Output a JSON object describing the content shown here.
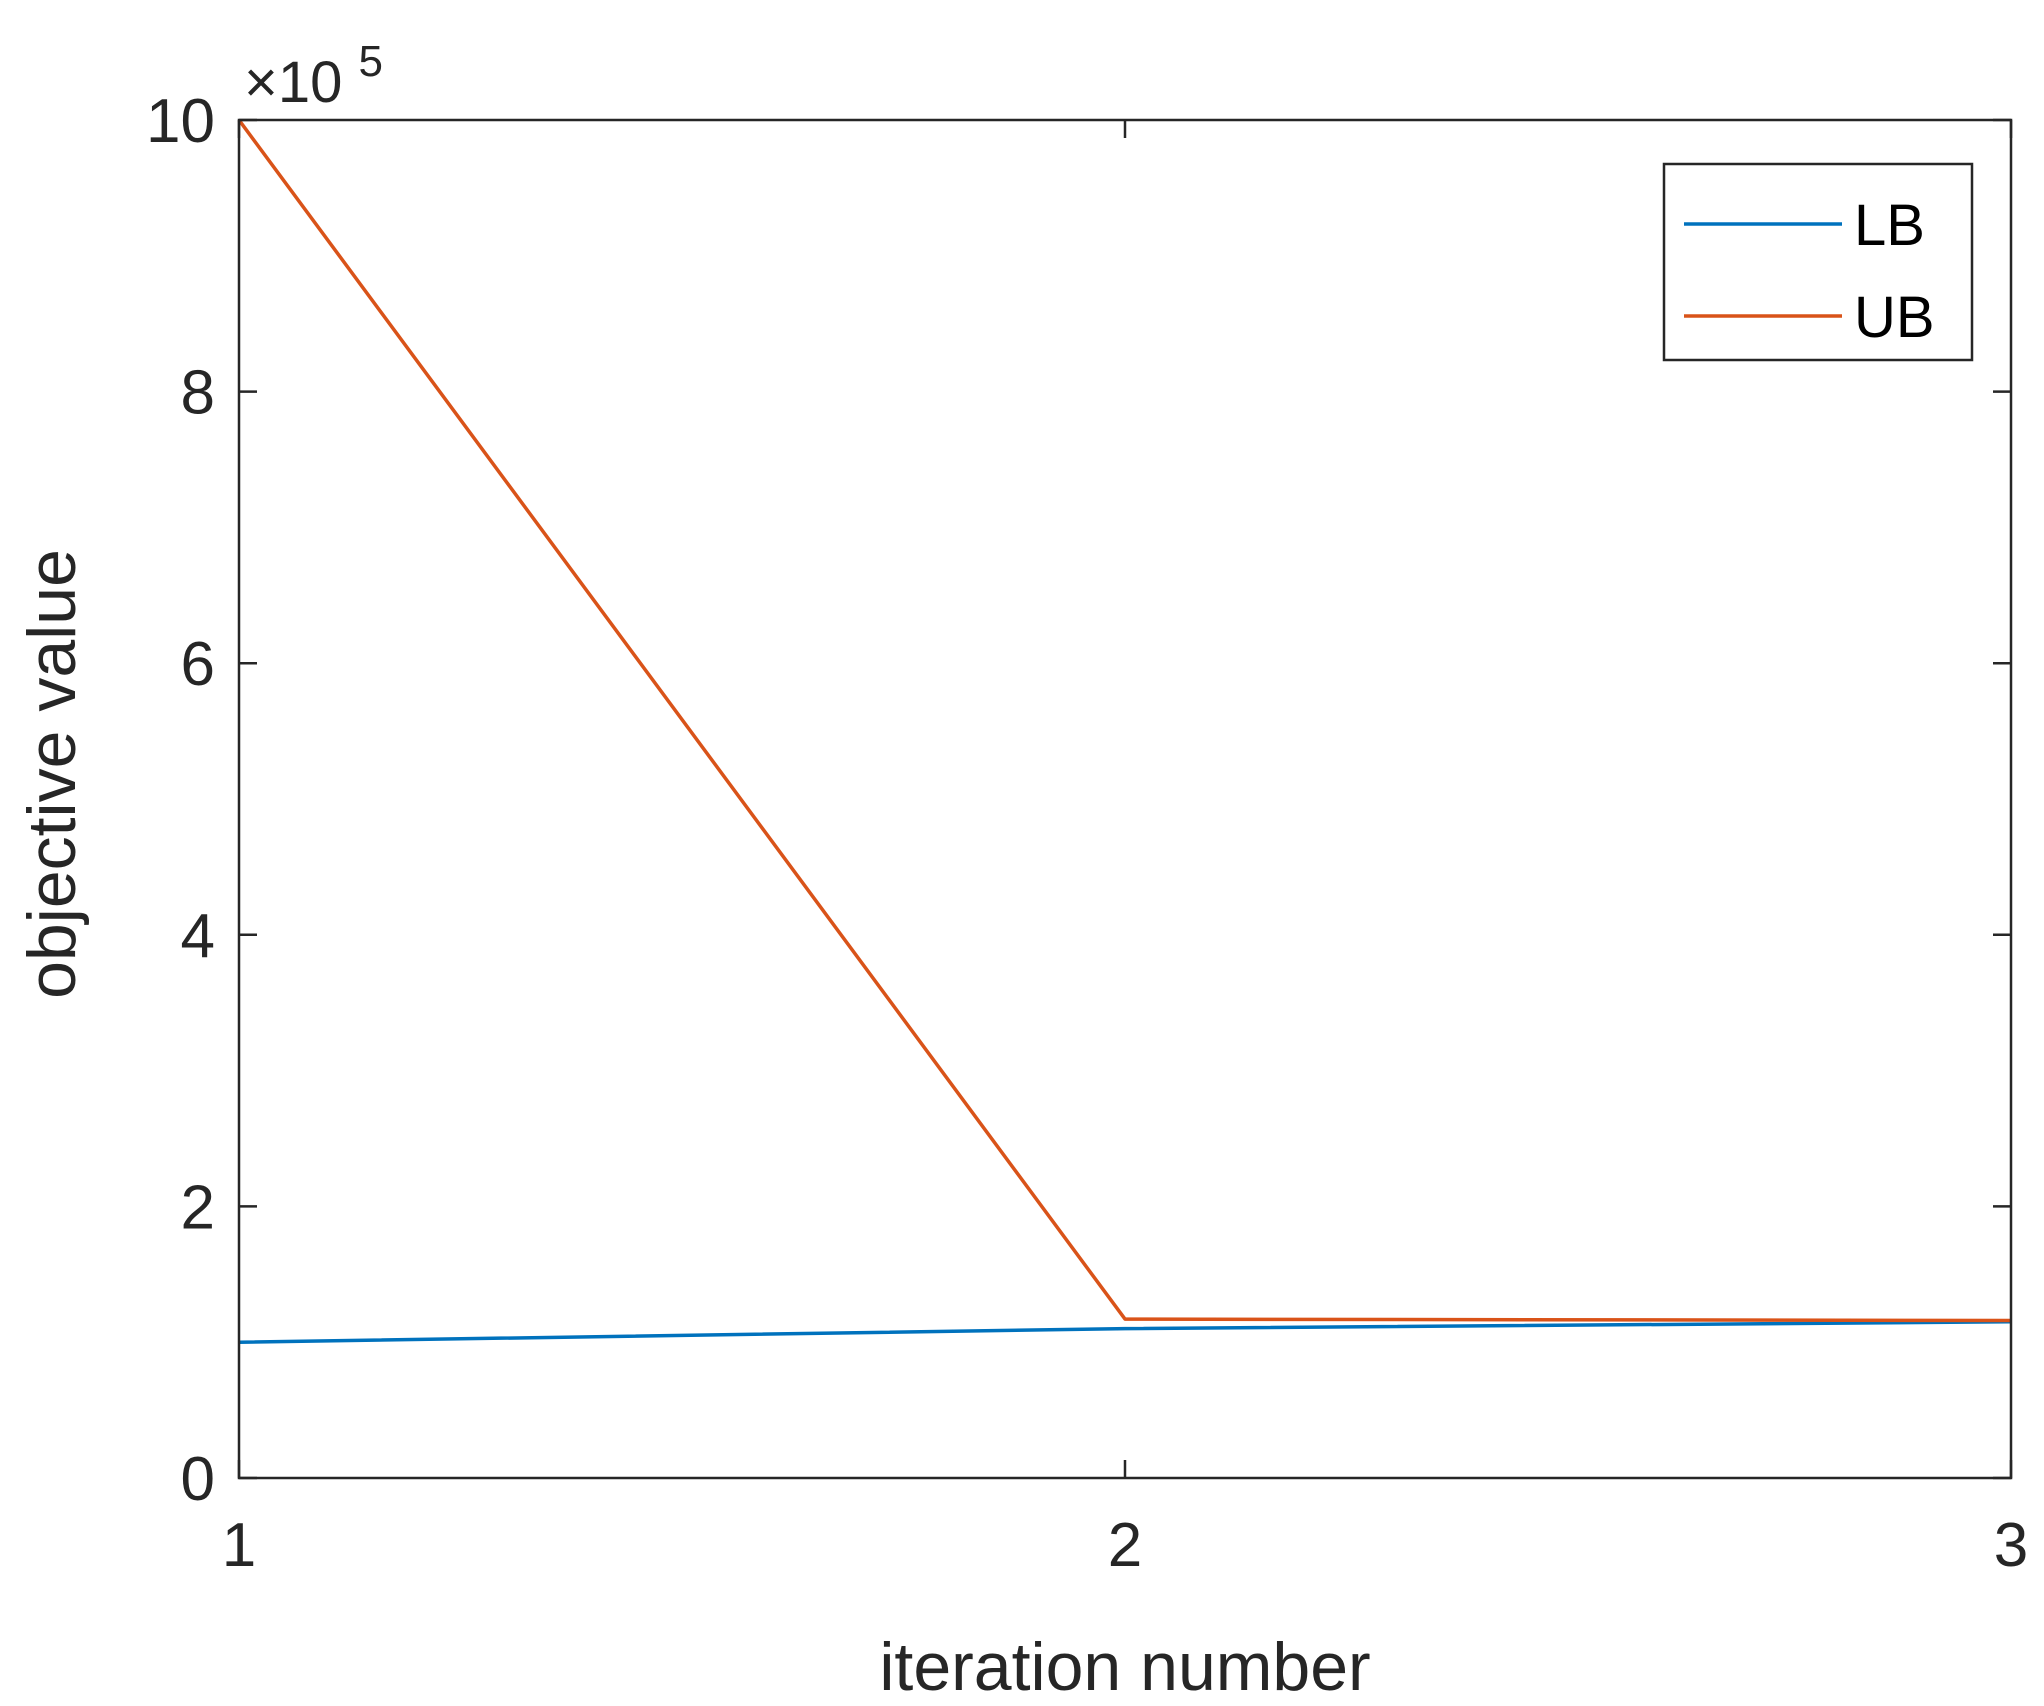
{
  "chart_data": {
    "type": "line",
    "x": [
      1,
      2,
      3
    ],
    "xlabel": "iteration number",
    "ylabel": "objective value",
    "xlim": [
      1,
      3
    ],
    "ylim": [
      0,
      10
    ],
    "y_exponent_label": {
      "base": "×10",
      "exponent": "5"
    },
    "x_ticks": [
      1,
      2,
      3
    ],
    "x_tick_labels": [
      "1",
      "2",
      "3"
    ],
    "y_ticks": [
      0,
      2,
      4,
      6,
      8,
      10
    ],
    "y_tick_labels": [
      "0",
      "2",
      "4",
      "6",
      "8",
      "10"
    ],
    "grid": false,
    "legend_position": "top-right",
    "series": [
      {
        "name": "LB",
        "color": "#0072BD",
        "values": [
          1.0,
          1.1,
          1.15
        ]
      },
      {
        "name": "UB",
        "color": "#D95319",
        "values": [
          10.0,
          1.17,
          1.16
        ]
      }
    ]
  }
}
